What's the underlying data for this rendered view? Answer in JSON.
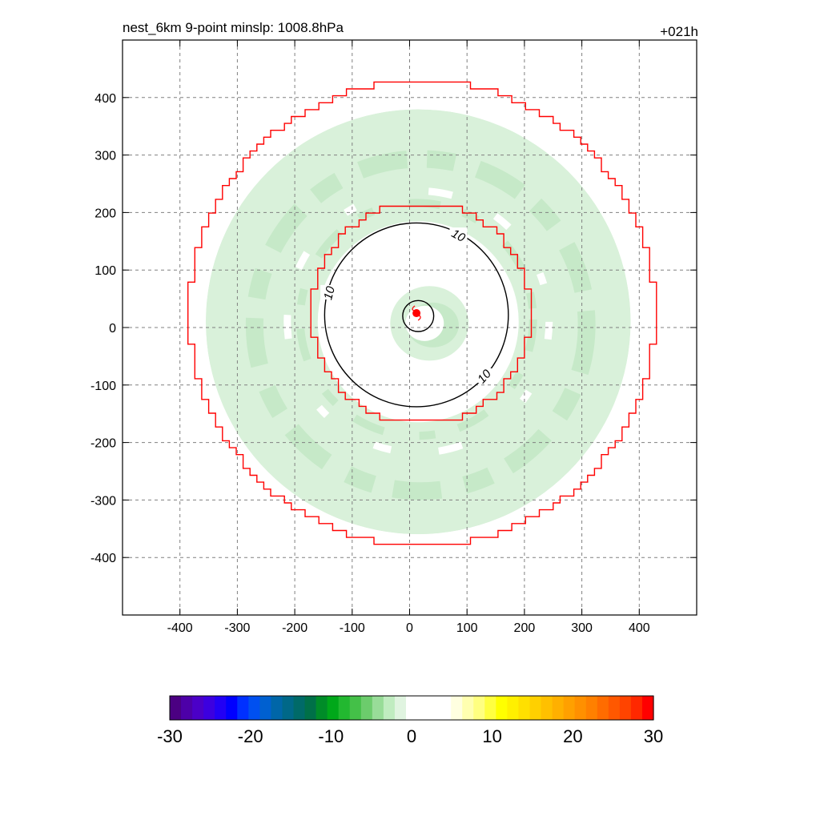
{
  "header": {
    "title_left": "nest_6km  9-point minslp: 1008.8hPa",
    "title_right": "+021h"
  },
  "chart_data": {
    "type": "heatmap",
    "title": "nest_6km  9-point minslp: 1008.8hPa",
    "forecast_hour": "+021h",
    "xlabel": "",
    "ylabel": "",
    "xlim": [
      -500,
      500
    ],
    "ylim": [
      -500,
      500
    ],
    "xticks": [
      -400,
      -300,
      -200,
      -100,
      0,
      100,
      200,
      300,
      400
    ],
    "yticks": [
      -400,
      -300,
      -200,
      -100,
      0,
      100,
      200,
      300,
      400
    ],
    "grid": true,
    "storm_center": {
      "x": 12,
      "y": 25
    },
    "shaded_field": {
      "description_value": "light green negative values approx -2 to -6",
      "outer_ring_inner_radius": 175,
      "outer_ring_outer_radius": 370,
      "inner_patch_radius": 65,
      "center": {
        "x": 15,
        "y": 10
      }
    },
    "boundary_outer": {
      "center": {
        "x": 22,
        "y": 25
      },
      "radius": 405,
      "color": "#ff0000"
    },
    "boundary_inner": {
      "center": {
        "x": 20,
        "y": 25
      },
      "radius": 192,
      "color": "#ff0000"
    },
    "contours": [
      {
        "level": 10,
        "label": "10",
        "center": {
          "x": 12,
          "y": 22
        },
        "radius": 160,
        "label_positions": [
          {
            "x": 85,
            "y": 160
          },
          {
            "x": -140,
            "y": 60
          },
          {
            "x": 130,
            "y": -85
          }
        ]
      },
      {
        "level": 10,
        "label": "",
        "center": {
          "x": 15,
          "y": 20
        },
        "radius": 27
      }
    ],
    "colorbar": {
      "min": -30,
      "max": 30,
      "tick_labels": [
        "-30",
        "-20",
        "-10",
        "0",
        "10",
        "20",
        "30"
      ],
      "colors": [
        "#4b0082",
        "#4d00a8",
        "#4b00c8",
        "#3c00e0",
        "#2200f5",
        "#0000ff",
        "#0030ff",
        "#0050f0",
        "#0060d0",
        "#0066a8",
        "#006888",
        "#006a68",
        "#007048",
        "#008c28",
        "#00a81a",
        "#22b830",
        "#44c048",
        "#6ccc6c",
        "#98dc98",
        "#c0ecc0",
        "#e0f4e0",
        "#ffffff",
        "#ffffff",
        "#ffffff",
        "#ffffff",
        "#ffffe0",
        "#ffffb0",
        "#ffff80",
        "#ffff40",
        "#ffff00",
        "#fff000",
        "#ffe000",
        "#ffd000",
        "#ffc000",
        "#ffb000",
        "#ffa000",
        "#ff9000",
        "#ff8000",
        "#ff6c00",
        "#ff5800",
        "#ff4400",
        "#ff2800",
        "#ff0000"
      ]
    },
    "colors": {
      "shading": "#d9f1da",
      "shading_dark": "#c6e9c8",
      "boundary": "#ff0000",
      "contour": "#000000",
      "storm": "#ff0000"
    }
  }
}
